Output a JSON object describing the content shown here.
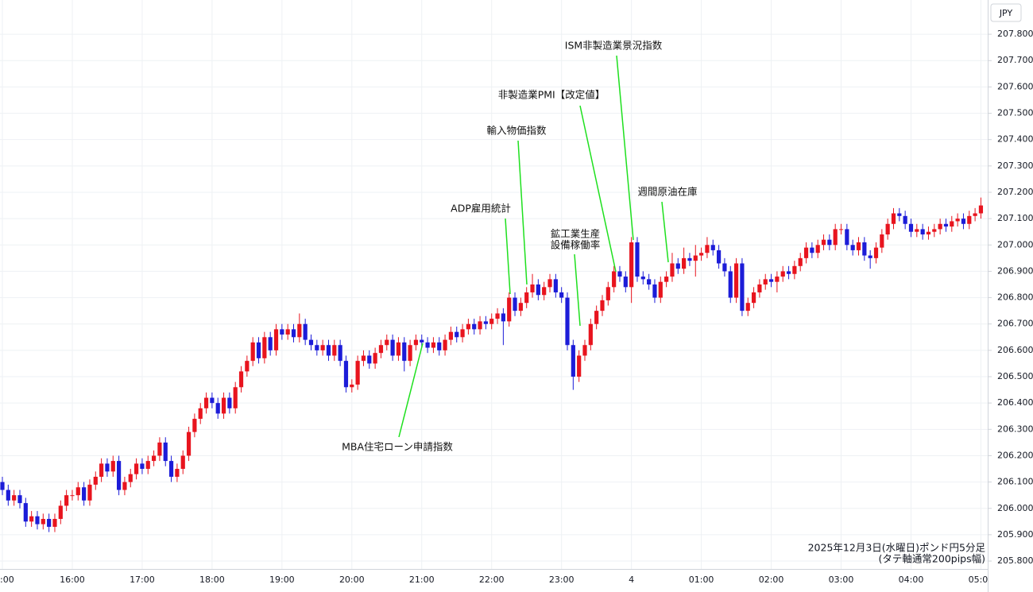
{
  "chart_data": {
    "type": "candlestick",
    "y_axis_label": "JPY",
    "note": [
      "2025年12月3日(水曜日)ポンド円5分足",
      "(タテ軸通常200pips幅)"
    ],
    "annotations": [
      {
        "lines": [
          "ISM非製造業景況指数"
        ]
      },
      {
        "lines": [
          "非製造業PMI【改定値】"
        ]
      },
      {
        "lines": [
          "輸入物価指数"
        ]
      },
      {
        "lines": [
          "ADP雇用統計"
        ]
      },
      {
        "lines": [
          "鉱工業生産",
          "設備稼働率"
        ]
      },
      {
        "lines": [
          "週間原油在庫"
        ]
      },
      {
        "lines": [
          "MBA住宅ローン申請指数"
        ]
      }
    ],
    "up_color": "#e8141e",
    "down_color": "#1c1cd8",
    "grid": true,
    "ylim": [
      205.77,
      207.93
    ],
    "yticks": [
      {
        "value": 205.8,
        "label": "205.800"
      },
      {
        "value": 205.9,
        "label": "205.900"
      },
      {
        "value": 206.0,
        "label": "206.000"
      },
      {
        "value": 206.1,
        "label": "206.100"
      },
      {
        "value": 206.2,
        "label": "206.200"
      },
      {
        "value": 206.3,
        "label": "206.300"
      },
      {
        "value": 206.4,
        "label": "206.400"
      },
      {
        "value": 206.5,
        "label": "206.500"
      },
      {
        "value": 206.6,
        "label": "206.600"
      },
      {
        "value": 206.7,
        "label": "206.700"
      },
      {
        "value": 206.8,
        "label": "206.800"
      },
      {
        "value": 206.9,
        "label": "206.900"
      },
      {
        "value": 207.0,
        "label": "207.000"
      },
      {
        "value": 207.1,
        "label": "207.100"
      },
      {
        "value": 207.2,
        "label": "207.200"
      },
      {
        "value": 207.3,
        "label": "207.300"
      },
      {
        "value": 207.4,
        "label": "207.400"
      },
      {
        "value": 207.5,
        "label": "207.500"
      },
      {
        "value": 207.6,
        "label": "207.600"
      },
      {
        "value": 207.7,
        "label": "207.700"
      },
      {
        "value": 207.8,
        "label": "207.800"
      }
    ],
    "categories": [
      ":00",
      null,
      null,
      null,
      null,
      null,
      null,
      null,
      null,
      null,
      null,
      null,
      "16:00",
      null,
      null,
      null,
      null,
      null,
      null,
      null,
      null,
      null,
      null,
      null,
      "17:00",
      null,
      null,
      null,
      null,
      null,
      null,
      null,
      null,
      null,
      null,
      null,
      "18:00",
      null,
      null,
      null,
      null,
      null,
      null,
      null,
      null,
      null,
      null,
      null,
      "19:00",
      null,
      null,
      null,
      null,
      null,
      null,
      null,
      null,
      null,
      null,
      null,
      "20:00",
      null,
      null,
      null,
      null,
      null,
      null,
      null,
      null,
      null,
      null,
      null,
      "21:00",
      null,
      null,
      null,
      null,
      null,
      null,
      null,
      null,
      null,
      null,
      null,
      "22:00",
      null,
      null,
      null,
      null,
      null,
      null,
      null,
      null,
      null,
      null,
      null,
      "23:00",
      null,
      null,
      null,
      null,
      null,
      null,
      null,
      null,
      null,
      null,
      null,
      "4",
      null,
      null,
      null,
      null,
      null,
      null,
      null,
      null,
      null,
      null,
      null,
      "01:00",
      null,
      null,
      null,
      null,
      null,
      null,
      null,
      null,
      null,
      null,
      null,
      "02:00",
      null,
      null,
      null,
      null,
      null,
      null,
      null,
      null,
      null,
      null,
      null,
      "03:00",
      null,
      null,
      null,
      null,
      null,
      null,
      null,
      null,
      null,
      null,
      null,
      "04:00",
      null,
      null,
      null,
      null,
      null,
      null,
      null,
      null,
      null,
      null,
      null,
      "05:00"
    ],
    "open": [
      206.1,
      206.07,
      206.03,
      206.05,
      206.02,
      205.95,
      205.97,
      205.94,
      205.96,
      205.93,
      205.96,
      206.01,
      206.05,
      206.05,
      206.08,
      206.03,
      206.09,
      206.12,
      206.17,
      206.14,
      206.18,
      206.07,
      206.1,
      206.13,
      206.17,
      206.15,
      206.18,
      206.2,
      206.25,
      206.18,
      206.12,
      206.15,
      206.2,
      206.29,
      206.34,
      206.38,
      206.42,
      206.4,
      206.36,
      206.42,
      206.38,
      206.46,
      206.52,
      206.56,
      206.63,
      206.57,
      206.65,
      206.6,
      206.68,
      206.66,
      206.68,
      206.65,
      206.7,
      206.64,
      206.62,
      206.6,
      206.62,
      206.58,
      206.62,
      206.56,
      206.46,
      206.47,
      206.56,
      206.58,
      206.55,
      206.59,
      206.62,
      206.64,
      206.58,
      206.63,
      206.56,
      206.62,
      206.64,
      206.63,
      206.61,
      206.63,
      206.6,
      206.64,
      206.67,
      206.65,
      206.68,
      206.7,
      206.68,
      206.71,
      206.7,
      206.72,
      206.74,
      206.71,
      206.8,
      206.75,
      206.78,
      206.82,
      206.85,
      206.81,
      206.84,
      206.87,
      206.82,
      206.8,
      206.62,
      206.5,
      206.58,
      206.62,
      206.7,
      206.75,
      206.79,
      206.84,
      206.9,
      206.88,
      206.84,
      207.01,
      206.88,
      206.87,
      206.85,
      206.8,
      206.86,
      206.88,
      206.93,
      206.91,
      206.95,
      206.94,
      206.96,
      206.97,
      207.0,
      206.98,
      206.93,
      206.9,
      206.8,
      206.93,
      206.75,
      206.78,
      206.82,
      206.85,
      206.87,
      206.86,
      206.88,
      206.9,
      206.89,
      206.92,
      206.95,
      206.99,
      206.97,
      207.0,
      207.02,
      207.0,
      207.06,
      207.06,
      207.0,
      206.98,
      207.01,
      206.96,
      206.95,
      206.99,
      207.04,
      207.08,
      207.12,
      207.11,
      207.08,
      207.05,
      207.06,
      207.04,
      207.05,
      207.06,
      207.08,
      207.07,
      207.09,
      207.1,
      207.08,
      207.11,
      207.12
    ],
    "high": [
      206.12,
      206.09,
      206.07,
      206.07,
      206.04,
      205.99,
      205.99,
      205.98,
      205.98,
      205.98,
      206.03,
      206.07,
      206.07,
      206.1,
      206.1,
      206.11,
      206.14,
      206.19,
      206.19,
      206.2,
      206.2,
      206.12,
      206.15,
      206.19,
      206.19,
      206.2,
      206.22,
      206.27,
      206.27,
      206.2,
      206.17,
      206.22,
      206.31,
      206.36,
      206.4,
      206.44,
      206.44,
      206.42,
      206.44,
      206.44,
      206.48,
      206.54,
      206.58,
      206.65,
      206.65,
      206.67,
      206.67,
      206.7,
      206.7,
      206.7,
      206.7,
      206.74,
      206.72,
      206.66,
      206.64,
      206.64,
      206.64,
      206.64,
      206.64,
      206.58,
      206.49,
      206.58,
      206.6,
      206.6,
      206.61,
      206.64,
      206.66,
      206.66,
      206.65,
      206.65,
      206.64,
      206.66,
      206.66,
      206.65,
      206.65,
      206.65,
      206.66,
      206.69,
      206.69,
      206.7,
      206.72,
      206.72,
      206.73,
      206.73,
      206.74,
      206.76,
      206.76,
      206.82,
      206.82,
      206.8,
      206.84,
      206.89,
      206.87,
      206.86,
      206.89,
      206.89,
      206.84,
      206.82,
      206.64,
      206.6,
      206.64,
      206.72,
      206.77,
      206.81,
      206.86,
      206.92,
      206.92,
      206.9,
      207.03,
      207.03,
      206.9,
      206.89,
      206.87,
      206.88,
      206.9,
      206.97,
      206.95,
      206.99,
      206.97,
      207.0,
      206.99,
      207.03,
      207.02,
      207.0,
      206.95,
      206.92,
      206.95,
      206.95,
      206.8,
      206.84,
      206.87,
      206.89,
      206.89,
      206.9,
      206.92,
      206.92,
      206.94,
      206.97,
      207.01,
      207.01,
      207.02,
      207.04,
      207.04,
      207.08,
      207.08,
      207.08,
      207.02,
      207.03,
      207.03,
      206.98,
      207.01,
      207.06,
      207.1,
      207.14,
      207.14,
      207.13,
      207.1,
      207.08,
      207.08,
      207.07,
      207.08,
      207.1,
      207.1,
      207.11,
      207.12,
      207.12,
      207.13,
      207.14,
      207.18
    ],
    "low": [
      206.05,
      206.01,
      206.01,
      206.0,
      205.93,
      205.93,
      205.92,
      205.92,
      205.91,
      205.91,
      205.94,
      205.99,
      206.03,
      206.03,
      206.01,
      206.01,
      206.07,
      206.1,
      206.12,
      206.12,
      206.05,
      206.05,
      206.08,
      206.11,
      206.13,
      206.13,
      206.16,
      206.18,
      206.16,
      206.1,
      206.1,
      206.13,
      206.18,
      206.27,
      206.32,
      206.36,
      206.38,
      206.34,
      206.34,
      206.36,
      206.36,
      206.44,
      206.5,
      206.54,
      206.55,
      206.55,
      206.58,
      206.58,
      206.64,
      206.64,
      206.63,
      206.63,
      206.62,
      206.6,
      206.58,
      206.58,
      206.56,
      206.56,
      206.54,
      206.44,
      206.44,
      206.45,
      206.54,
      206.53,
      206.53,
      206.57,
      206.6,
      206.56,
      206.56,
      206.52,
      206.54,
      206.6,
      206.61,
      206.59,
      206.59,
      206.58,
      206.58,
      206.62,
      206.63,
      206.63,
      206.66,
      206.66,
      206.66,
      206.68,
      206.68,
      206.7,
      206.62,
      206.69,
      206.73,
      206.73,
      206.76,
      206.8,
      206.79,
      206.79,
      206.82,
      206.8,
      206.78,
      206.6,
      206.45,
      206.48,
      206.56,
      206.6,
      206.68,
      206.73,
      206.77,
      206.82,
      206.86,
      206.82,
      206.78,
      206.86,
      206.85,
      206.83,
      206.78,
      206.78,
      206.84,
      206.86,
      206.89,
      206.89,
      206.92,
      206.88,
      206.94,
      206.95,
      206.96,
      206.91,
      206.88,
      206.78,
      206.78,
      206.73,
      206.73,
      206.76,
      206.8,
      206.83,
      206.84,
      206.82,
      206.86,
      206.87,
      206.87,
      206.9,
      206.93,
      206.95,
      206.95,
      206.98,
      206.98,
      206.98,
      207.04,
      206.98,
      206.96,
      206.96,
      206.94,
      206.91,
      206.93,
      206.97,
      207.02,
      207.06,
      207.09,
      207.06,
      207.03,
      207.03,
      207.02,
      207.02,
      207.03,
      207.04,
      207.05,
      207.05,
      207.07,
      207.06,
      207.06,
      207.09,
      207.1
    ],
    "close": [
      206.07,
      206.03,
      206.05,
      206.02,
      205.95,
      205.97,
      205.94,
      205.96,
      205.93,
      205.96,
      206.01,
      206.05,
      206.05,
      206.08,
      206.03,
      206.09,
      206.12,
      206.17,
      206.14,
      206.18,
      206.07,
      206.1,
      206.13,
      206.17,
      206.15,
      206.18,
      206.2,
      206.25,
      206.18,
      206.12,
      206.15,
      206.2,
      206.29,
      206.34,
      206.38,
      206.42,
      206.4,
      206.36,
      206.42,
      206.38,
      206.46,
      206.52,
      206.56,
      206.63,
      206.57,
      206.65,
      206.6,
      206.68,
      206.66,
      206.68,
      206.65,
      206.7,
      206.64,
      206.62,
      206.6,
      206.62,
      206.58,
      206.62,
      206.56,
      206.46,
      206.47,
      206.56,
      206.58,
      206.55,
      206.59,
      206.62,
      206.64,
      206.58,
      206.63,
      206.56,
      206.62,
      206.64,
      206.63,
      206.61,
      206.63,
      206.6,
      206.64,
      206.67,
      206.65,
      206.68,
      206.7,
      206.68,
      206.71,
      206.7,
      206.72,
      206.74,
      206.71,
      206.8,
      206.75,
      206.78,
      206.82,
      206.85,
      206.81,
      206.84,
      206.87,
      206.82,
      206.8,
      206.62,
      206.5,
      206.58,
      206.62,
      206.7,
      206.75,
      206.79,
      206.84,
      206.9,
      206.88,
      206.84,
      207.01,
      206.88,
      206.87,
      206.85,
      206.8,
      206.86,
      206.88,
      206.93,
      206.91,
      206.95,
      206.94,
      206.96,
      206.97,
      207.0,
      206.98,
      206.93,
      206.9,
      206.8,
      206.93,
      206.75,
      206.78,
      206.82,
      206.85,
      206.87,
      206.86,
      206.88,
      206.9,
      206.89,
      206.92,
      206.95,
      206.99,
      206.97,
      207.0,
      207.02,
      207.0,
      207.06,
      207.06,
      207.0,
      206.98,
      207.01,
      206.96,
      206.95,
      206.99,
      207.04,
      207.08,
      207.12,
      207.11,
      207.08,
      207.05,
      207.06,
      207.04,
      207.05,
      207.06,
      207.08,
      207.07,
      207.09,
      207.1,
      207.08,
      207.11,
      207.12,
      207.15
    ]
  }
}
